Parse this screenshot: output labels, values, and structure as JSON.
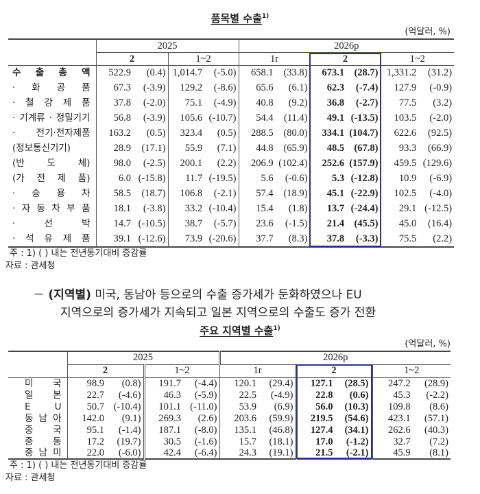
{
  "table1": {
    "title": "품목별 수출",
    "title_sup": "1)",
    "unit": "(억달러, %)",
    "year_headers": [
      "2025",
      "2026p"
    ],
    "sub_headers": [
      "2",
      "1~2",
      "1r",
      "2",
      "1~2"
    ],
    "highlight_color": "#2b2f8f",
    "rows": [
      {
        "label": "수 출 총 액",
        "cells": [
          [
            "522.9",
            "(0.4)"
          ],
          [
            "1,014.7",
            "(-5.0)"
          ],
          [
            "658.1",
            "(33.8)"
          ],
          [
            "673.1",
            "(28.7)"
          ],
          [
            "1,331.2",
            "(31.2)"
          ]
        ]
      },
      {
        "label": "· 화 공 품",
        "cells": [
          [
            "67.3",
            "(-3.9)"
          ],
          [
            "129.2",
            "(-8.6)"
          ],
          [
            "65.6",
            "(6.1)"
          ],
          [
            "62.3",
            "(-7.4)"
          ],
          [
            "127.9",
            "(-0.9)"
          ]
        ]
      },
      {
        "label": "· 철 강 제 품",
        "cells": [
          [
            "37.8",
            "(-2.0)"
          ],
          [
            "75.1",
            "(-4.9)"
          ],
          [
            "40.8",
            "(9.2)"
          ],
          [
            "36.8",
            "(-2.7)"
          ],
          [
            "77.5",
            "(3.2)"
          ]
        ]
      },
      {
        "label": "· 기계류 · 정밀기기",
        "cells": [
          [
            "56.8",
            "(-3.9)"
          ],
          [
            "105.6",
            "(-10.7)"
          ],
          [
            "54.4",
            "(11.4)"
          ],
          [
            "49.1",
            "(-13.5)"
          ],
          [
            "103.5",
            "(-2.0)"
          ]
        ]
      },
      {
        "label": "· 전기·전자제품",
        "cells": [
          [
            "163.2",
            "(0.5)"
          ],
          [
            "323.4",
            "(0.5)"
          ],
          [
            "288.5",
            "(80.0)"
          ],
          [
            "334.1",
            "(104.7)"
          ],
          [
            "622.6",
            "(92.5)"
          ]
        ]
      },
      {
        "label": "(정보통신기기)",
        "cells": [
          [
            "28.9",
            "(17.1)"
          ],
          [
            "55.9",
            "(7.1)"
          ],
          [
            "44.8",
            "(65.9)"
          ],
          [
            "48.5",
            "(67.8)"
          ],
          [
            "93.3",
            "(66.9)"
          ]
        ]
      },
      {
        "label": "(반 도 체)",
        "cells": [
          [
            "98.0",
            "(-2.5)"
          ],
          [
            "200.1",
            "(2.2)"
          ],
          [
            "206.9",
            "(102.4)"
          ],
          [
            "252.6",
            "(157.9)"
          ],
          [
            "459.5",
            "(129.6)"
          ]
        ]
      },
      {
        "label": "(가 전 제 품)",
        "cells": [
          [
            "6.0",
            "(-15.8)"
          ],
          [
            "11.7",
            "(-19.5)"
          ],
          [
            "5.6",
            "(-0.6)"
          ],
          [
            "5.3",
            "(-12.8)"
          ],
          [
            "10.9",
            "(-6.9)"
          ]
        ]
      },
      {
        "label": "· 승 용 차",
        "cells": [
          [
            "58.5",
            "(18.7)"
          ],
          [
            "106.8",
            "(-2.1)"
          ],
          [
            "57.4",
            "(18.9)"
          ],
          [
            "45.1",
            "(-22.9)"
          ],
          [
            "102.5",
            "(-4.0)"
          ]
        ]
      },
      {
        "label": "· 자 동 차 부 품",
        "cells": [
          [
            "18.1",
            "(-3.8)"
          ],
          [
            "33.2",
            "(-10.4)"
          ],
          [
            "15.4",
            "(1.8)"
          ],
          [
            "13.7",
            "(-24.4)"
          ],
          [
            "29.1",
            "(-12.5)"
          ]
        ]
      },
      {
        "label": "· 선 박",
        "cells": [
          [
            "14.7",
            "(-10.5)"
          ],
          [
            "38.7",
            "(-5.7)"
          ],
          [
            "23.6",
            "(-1.5)"
          ],
          [
            "21.4",
            "(45.5)"
          ],
          [
            "45.0",
            "(16.4)"
          ]
        ]
      },
      {
        "label": "· 석 유 제 품",
        "cells": [
          [
            "39.1",
            "(-12.6)"
          ],
          [
            "73.9",
            "(-20.6)"
          ],
          [
            "37.7",
            "(8.3)"
          ],
          [
            "37.8",
            "(-3.3)"
          ],
          [
            "75.5",
            "(2.2)"
          ]
        ]
      }
    ],
    "note": "주 : 1) (   ) 내는 전년동기대비 증감률",
    "source": "자료 : 관세청"
  },
  "paragraph": {
    "dash": "－",
    "lead": "(지역별)",
    "line1": "미국, 동남아 등으로의 수출 증가세가 둔화하였으나 EU",
    "line2": "지역으로의 증가세가 지속되고 일본 지역으로의 수출도 증가 전환"
  },
  "table2": {
    "title": "주요 지역별 수출",
    "title_sup": "1)",
    "unit": "(억달러, %)",
    "year_headers": [
      "2025",
      "2026p"
    ],
    "sub_headers": [
      "2",
      "1~2",
      "1r",
      "2",
      "1~2"
    ],
    "rows": [
      {
        "label": "미 국",
        "cells": [
          [
            "98.9",
            "(0.8)"
          ],
          [
            "191.7",
            "(-4.4)"
          ],
          [
            "120.1",
            "(29.4)"
          ],
          [
            "127.1",
            "(28.5)"
          ],
          [
            "247.2",
            "(28.9)"
          ]
        ]
      },
      {
        "label": "일 본",
        "cells": [
          [
            "22.7",
            "(-4.6)"
          ],
          [
            "46.3",
            "(-5.9)"
          ],
          [
            "22.5",
            "(-4.9)"
          ],
          [
            "22.8",
            "(0.6)"
          ],
          [
            "45.3",
            "(-2.2)"
          ]
        ]
      },
      {
        "label": "E U",
        "cells": [
          [
            "50.7",
            "(-10.4)"
          ],
          [
            "101.1",
            "(-11.0)"
          ],
          [
            "53.9",
            "(6.9)"
          ],
          [
            "56.0",
            "(10.3)"
          ],
          [
            "109.8",
            "(8.6)"
          ]
        ]
      },
      {
        "label": "동 남 아",
        "cells": [
          [
            "142.0",
            "(9.1)"
          ],
          [
            "269.3",
            "(2.6)"
          ],
          [
            "203.6",
            "(59.9)"
          ],
          [
            "219.5",
            "(54.6)"
          ],
          [
            "423.1",
            "(57.1)"
          ]
        ]
      },
      {
        "label": "중 국",
        "cells": [
          [
            "95.1",
            "(-1.4)"
          ],
          [
            "187.1",
            "(-8.0)"
          ],
          [
            "135.1",
            "(46.8)"
          ],
          [
            "127.4",
            "(34.1)"
          ],
          [
            "262.6",
            "(40.3)"
          ]
        ]
      },
      {
        "label": "중 동",
        "cells": [
          [
            "17.2",
            "(19.7)"
          ],
          [
            "30.5",
            "(-1.6)"
          ],
          [
            "15.7",
            "(18.1)"
          ],
          [
            "17.0",
            "(-1.2)"
          ],
          [
            "32.7",
            "(7.2)"
          ]
        ]
      },
      {
        "label": "중 남 미",
        "cells": [
          [
            "22.0",
            "(-6.0)"
          ],
          [
            "42.4",
            "(-6.4)"
          ],
          [
            "24.3",
            "(19.1)"
          ],
          [
            "21.5",
            "(-2.1)"
          ],
          [
            "45.9",
            "(8.1)"
          ]
        ]
      }
    ],
    "note": "주 : 1) (   ) 내는 전년동기대비 증감률",
    "source": "자료 : 관세청"
  }
}
